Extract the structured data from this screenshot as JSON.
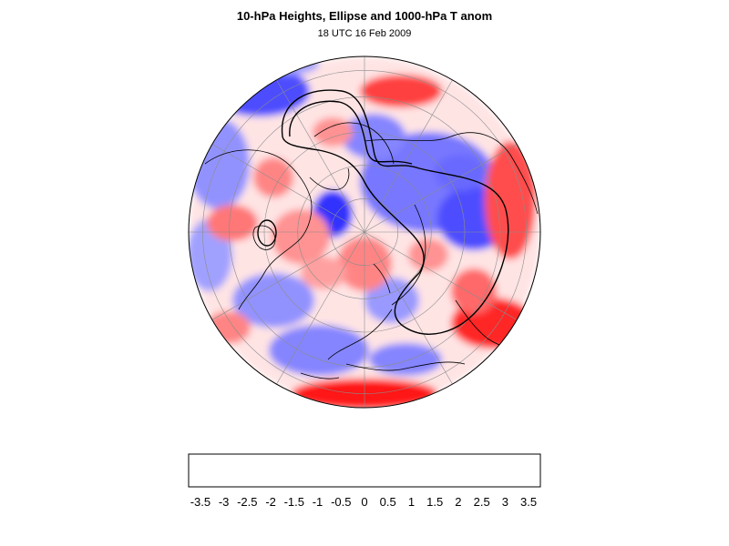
{
  "title": "10-hPa Heights, Ellipse and 1000-hPa T anom",
  "subtitle": "18 UTC 16 Feb 2009",
  "colors": {
    "cold": "#0000ff",
    "neutral": "#ffffff",
    "warm": "#ff0000",
    "contour": "#000000",
    "coastline": "#000000",
    "graticule": "#8c8c8c"
  },
  "map": {
    "projection": "north polar stereographic",
    "variable": "1000-hPa temperature anomaly",
    "overlay": "10-hPa height contours and vortex ellipse"
  },
  "colorbar": {
    "min": -3.75,
    "max": 3.75,
    "step": 0.25,
    "ticks": [
      "-3.5",
      "-3",
      "-2.5",
      "-2",
      "-1.5",
      "-1",
      "-0.5",
      "0",
      "0.5",
      "1",
      "1.5",
      "2",
      "2.5",
      "3",
      "3.5"
    ]
  }
}
